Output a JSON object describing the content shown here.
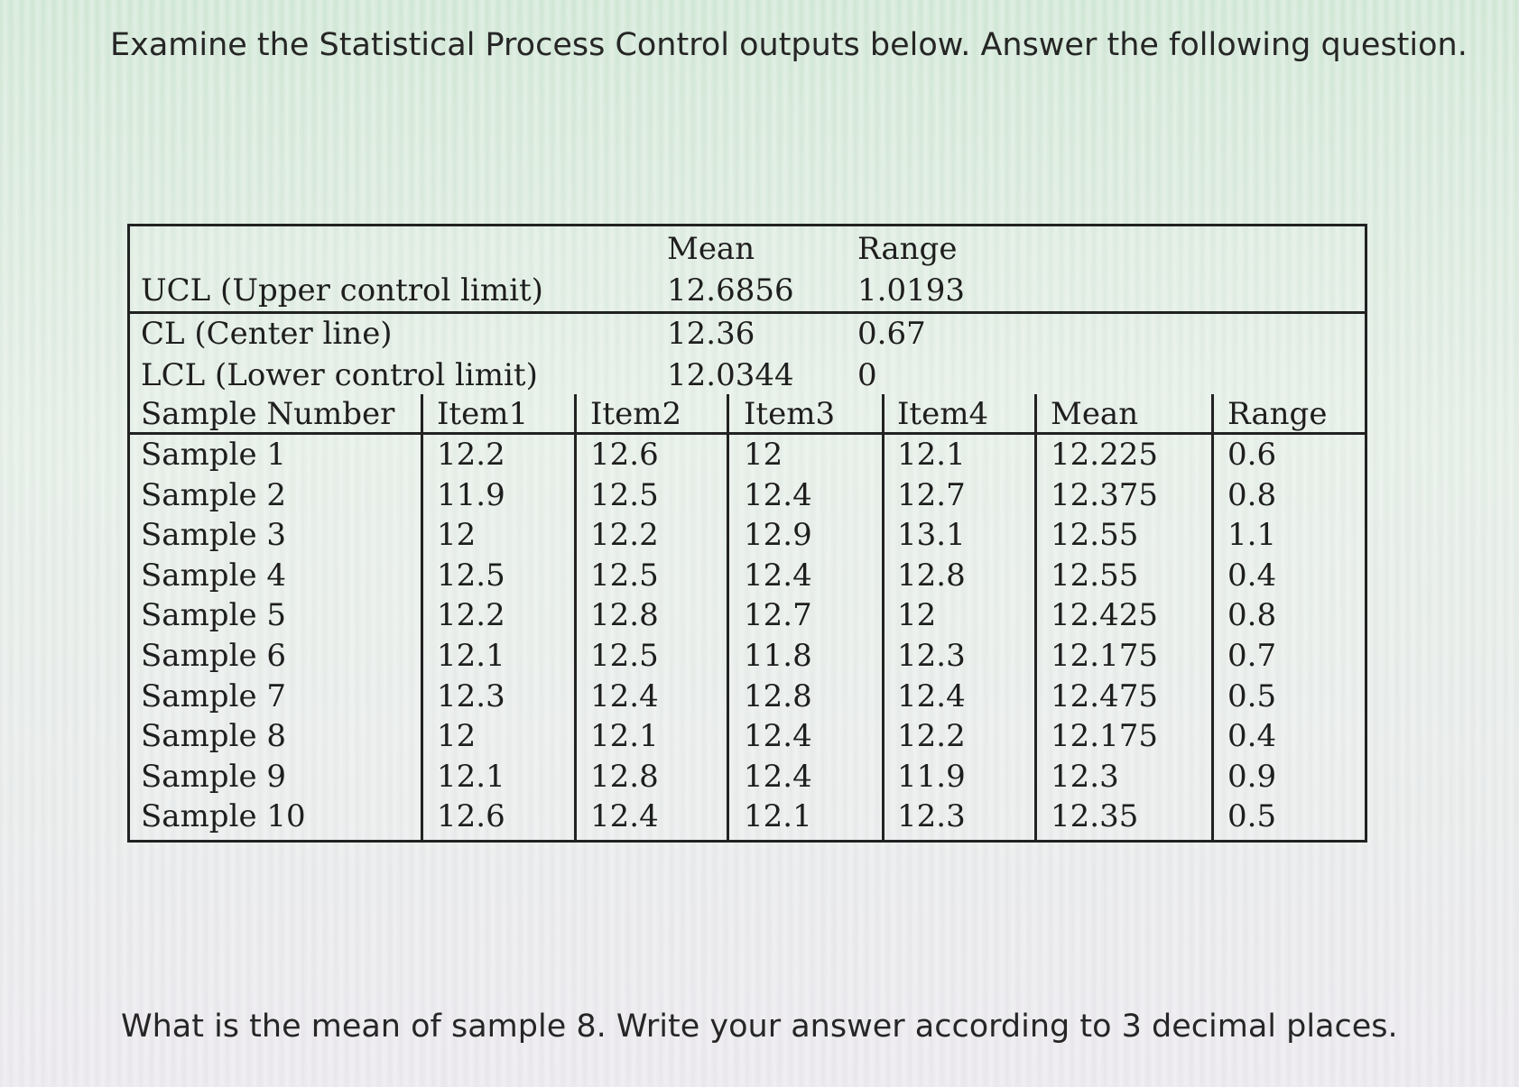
{
  "prompt": "Examine the Statistical Process Control outputs below. Answer the following question.",
  "question": "What is the mean of sample 8. Write your answer according to 3 decimal places.",
  "limits": {
    "header_mean": "Mean",
    "header_range": "Range",
    "rows": [
      {
        "label": "UCL (Upper control limit)",
        "mean": "12.6856",
        "range": "1.0193"
      },
      {
        "label": "CL (Center line)",
        "mean": "12.36",
        "range": "0.67"
      },
      {
        "label": "LCL (Lower control limit)",
        "mean": "12.0344",
        "range": "0"
      }
    ]
  },
  "samples": {
    "headers": [
      "Sample Number",
      "Item1",
      "Item2",
      "Item3",
      "Item4",
      "Mean",
      "Range"
    ],
    "rows": [
      [
        "Sample 1",
        "12.2",
        "12.6",
        "12",
        "12.1",
        "12.225",
        "0.6"
      ],
      [
        "Sample 2",
        "11.9",
        "12.5",
        "12.4",
        "12.7",
        "12.375",
        "0.8"
      ],
      [
        "Sample 3",
        "12",
        "12.2",
        "12.9",
        "13.1",
        "12.55",
        "1.1"
      ],
      [
        "Sample 4",
        "12.5",
        "12.5",
        "12.4",
        "12.8",
        "12.55",
        "0.4"
      ],
      [
        "Sample 5",
        "12.2",
        "12.8",
        "12.7",
        "12",
        "12.425",
        "0.8"
      ],
      [
        "Sample 6",
        "12.1",
        "12.5",
        "11.8",
        "12.3",
        "12.175",
        "0.7"
      ],
      [
        "Sample 7",
        "12.3",
        "12.4",
        "12.8",
        "12.4",
        "12.475",
        "0.5"
      ],
      [
        "Sample 8",
        "12",
        "12.1",
        "12.4",
        "12.2",
        "12.175",
        "0.4"
      ],
      [
        "Sample 9",
        "12.1",
        "12.8",
        "12.4",
        "11.9",
        "12.3",
        "0.9"
      ],
      [
        "Sample 10",
        "12.6",
        "12.4",
        "12.1",
        "12.3",
        "12.35",
        "0.5"
      ]
    ]
  }
}
